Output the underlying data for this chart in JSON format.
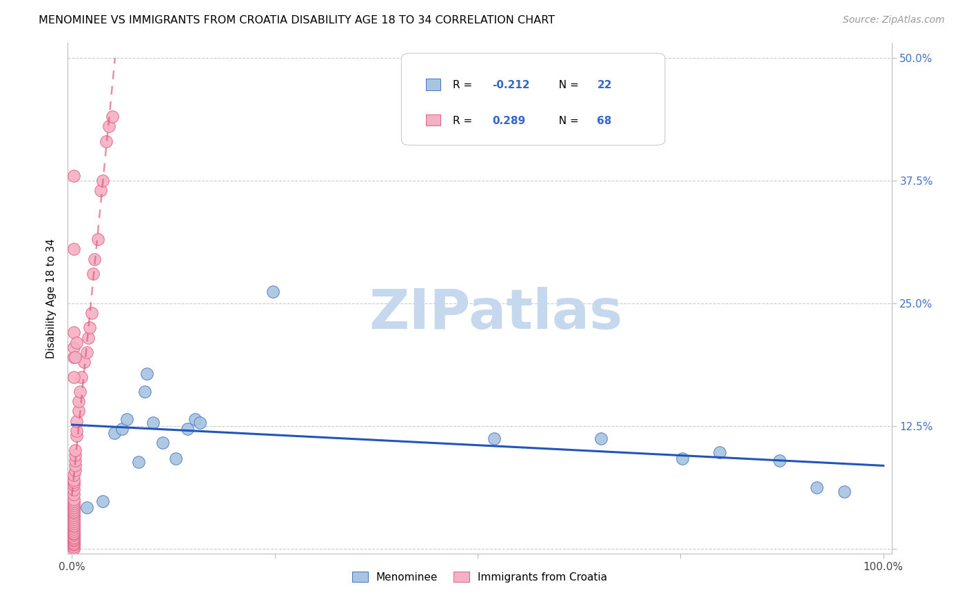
{
  "title": "MENOMINEE VS IMMIGRANTS FROM CROATIA DISABILITY AGE 18 TO 34 CORRELATION CHART",
  "source": "Source: ZipAtlas.com",
  "ylabel": "Disability Age 18 to 34",
  "xlim": [
    0.0,
    1.0
  ],
  "ylim": [
    0.0,
    0.5
  ],
  "xtick_positions": [
    0.0,
    0.25,
    0.5,
    0.75,
    1.0
  ],
  "xticklabels": [
    "0.0%",
    "",
    "",
    "",
    "100.0%"
  ],
  "ytick_positions": [
    0.0,
    0.125,
    0.25,
    0.375,
    0.5
  ],
  "yticklabels_right": [
    "",
    "12.5%",
    "25.0%",
    "37.5%",
    "50.0%"
  ],
  "menominee_color": "#a8c4e0",
  "menominee_edge": "#4472c4",
  "croatia_color": "#f4b0c4",
  "croatia_edge": "#e06080",
  "trendline_men_color": "#2255bb",
  "trendline_cro_color": "#dd5577",
  "grid_color": "#cccccc",
  "watermark_color": "#c5d8ee",
  "legend_r1_val": "-0.212",
  "legend_n1_val": "22",
  "legend_r2_val": "0.289",
  "legend_n2_val": "68",
  "menominee_x": [
    0.018,
    0.038,
    0.052,
    0.062,
    0.068,
    0.082,
    0.09,
    0.092,
    0.1,
    0.112,
    0.128,
    0.142,
    0.152,
    0.158,
    0.248,
    0.52,
    0.652,
    0.752,
    0.798,
    0.872,
    0.918,
    0.952
  ],
  "menominee_y": [
    0.042,
    0.048,
    0.118,
    0.122,
    0.132,
    0.088,
    0.16,
    0.178,
    0.128,
    0.108,
    0.092,
    0.122,
    0.132,
    0.128,
    0.262,
    0.112,
    0.112,
    0.092,
    0.098,
    0.09,
    0.062,
    0.058
  ],
  "croatia_x": [
    0.002,
    0.002,
    0.002,
    0.002,
    0.002,
    0.002,
    0.002,
    0.002,
    0.002,
    0.002,
    0.002,
    0.002,
    0.002,
    0.002,
    0.002,
    0.002,
    0.002,
    0.002,
    0.002,
    0.002,
    0.002,
    0.002,
    0.002,
    0.002,
    0.002,
    0.002,
    0.002,
    0.002,
    0.002,
    0.002,
    0.002,
    0.002,
    0.002,
    0.002,
    0.002,
    0.004,
    0.004,
    0.004,
    0.004,
    0.004,
    0.006,
    0.006,
    0.006,
    0.008,
    0.008,
    0.01,
    0.012,
    0.015,
    0.018,
    0.02,
    0.022,
    0.024,
    0.026,
    0.028,
    0.032,
    0.035,
    0.038,
    0.042,
    0.046,
    0.05,
    0.002,
    0.002,
    0.002,
    0.002,
    0.002,
    0.002,
    0.004,
    0.006
  ],
  "croatia_y": [
    0.0,
    0.002,
    0.004,
    0.005,
    0.006,
    0.008,
    0.009,
    0.01,
    0.012,
    0.014,
    0.015,
    0.016,
    0.018,
    0.02,
    0.022,
    0.024,
    0.026,
    0.028,
    0.03,
    0.032,
    0.034,
    0.036,
    0.038,
    0.04,
    0.042,
    0.044,
    0.046,
    0.048,
    0.05,
    0.055,
    0.06,
    0.065,
    0.068,
    0.07,
    0.075,
    0.08,
    0.085,
    0.09,
    0.095,
    0.1,
    0.115,
    0.12,
    0.13,
    0.14,
    0.15,
    0.16,
    0.175,
    0.19,
    0.2,
    0.215,
    0.225,
    0.24,
    0.28,
    0.295,
    0.315,
    0.365,
    0.375,
    0.415,
    0.43,
    0.44,
    0.175,
    0.195,
    0.205,
    0.22,
    0.305,
    0.38,
    0.195,
    0.21
  ]
}
